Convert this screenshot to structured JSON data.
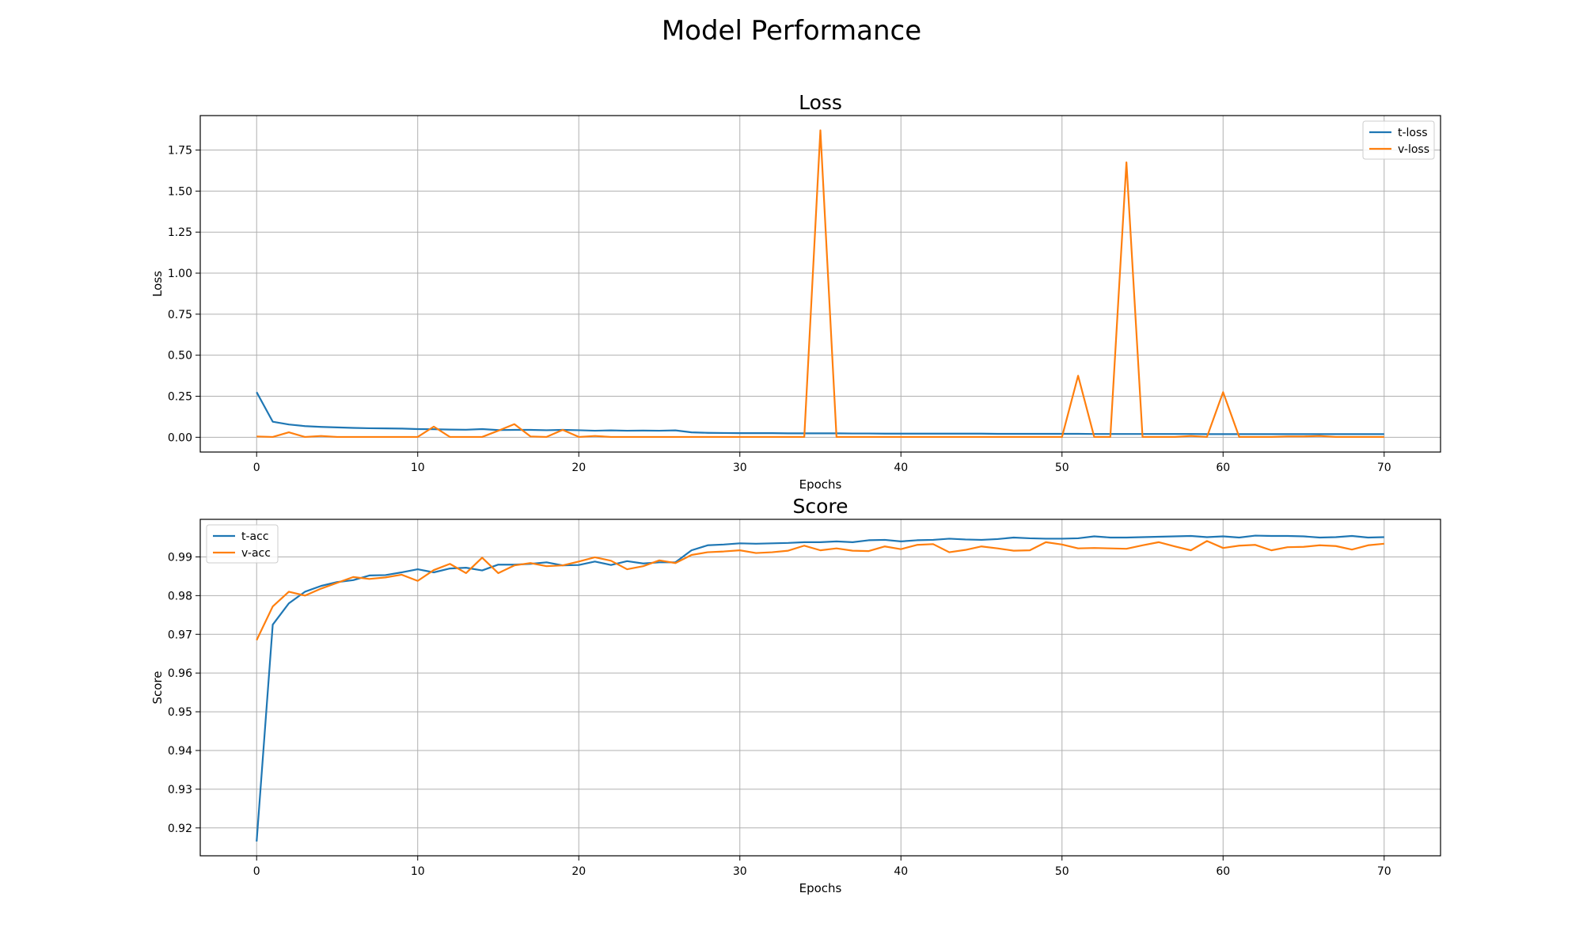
{
  "figure": {
    "title": "Model Performance"
  },
  "chart_data": [
    {
      "type": "line",
      "title": "Loss",
      "xlabel": "Epochs",
      "ylabel": "Loss",
      "xlim": [
        -3.5,
        73.5
      ],
      "ylim": [
        -0.09,
        1.96
      ],
      "xticks": [
        0,
        10,
        20,
        30,
        40,
        50,
        60,
        70
      ],
      "xtick_labels": [
        "0",
        "10",
        "20",
        "30",
        "40",
        "50",
        "60",
        "70"
      ],
      "yticks": [
        0.0,
        0.25,
        0.5,
        0.75,
        1.0,
        1.25,
        1.5,
        1.75
      ],
      "ytick_labels": [
        "0.00",
        "0.25",
        "0.50",
        "0.75",
        "1.00",
        "1.25",
        "1.50",
        "1.75"
      ],
      "grid": true,
      "legend_position": "top-right",
      "x": [
        0,
        1,
        2,
        3,
        4,
        5,
        6,
        7,
        8,
        9,
        10,
        11,
        12,
        13,
        14,
        15,
        16,
        17,
        18,
        19,
        20,
        21,
        22,
        23,
        24,
        25,
        26,
        27,
        28,
        29,
        30,
        31,
        32,
        33,
        34,
        35,
        36,
        37,
        38,
        39,
        40,
        41,
        42,
        43,
        44,
        45,
        46,
        47,
        48,
        49,
        50,
        51,
        52,
        53,
        54,
        55,
        56,
        57,
        58,
        59,
        60,
        61,
        62,
        63,
        64,
        65,
        66,
        67,
        68,
        69,
        70
      ],
      "series": [
        {
          "name": "t-loss",
          "color": "#1f77b4",
          "values": [
            0.275,
            0.095,
            0.078,
            0.068,
            0.063,
            0.06,
            0.057,
            0.055,
            0.054,
            0.053,
            0.05,
            0.049,
            0.047,
            0.046,
            0.05,
            0.044,
            0.045,
            0.045,
            0.043,
            0.045,
            0.043,
            0.04,
            0.042,
            0.04,
            0.041,
            0.04,
            0.042,
            0.03,
            0.027,
            0.026,
            0.025,
            0.025,
            0.025,
            0.024,
            0.024,
            0.024,
            0.024,
            0.023,
            0.023,
            0.022,
            0.022,
            0.022,
            0.022,
            0.022,
            0.022,
            0.022,
            0.021,
            0.021,
            0.021,
            0.021,
            0.021,
            0.021,
            0.02,
            0.02,
            0.02,
            0.02,
            0.02,
            0.02,
            0.02,
            0.019,
            0.019,
            0.019,
            0.019,
            0.019,
            0.019,
            0.019,
            0.019,
            0.019,
            0.019,
            0.019,
            0.019
          ]
        },
        {
          "name": "v-loss",
          "color": "#ff7f0e",
          "values": [
            0.005,
            0.002,
            0.03,
            0.002,
            0.008,
            0.002,
            0.002,
            0.002,
            0.002,
            0.002,
            0.002,
            0.065,
            0.002,
            0.002,
            0.002,
            0.04,
            0.08,
            0.005,
            0.002,
            0.045,
            0.002,
            0.008,
            0.002,
            0.002,
            0.002,
            0.002,
            0.002,
            0.002,
            0.002,
            0.002,
            0.002,
            0.002,
            0.002,
            0.002,
            0.002,
            1.87,
            0.002,
            0.002,
            0.002,
            0.002,
            0.002,
            0.002,
            0.002,
            0.002,
            0.002,
            0.002,
            0.002,
            0.002,
            0.002,
            0.002,
            0.002,
            0.375,
            0.002,
            0.002,
            1.675,
            0.002,
            0.002,
            0.002,
            0.008,
            0.002,
            0.275,
            0.002,
            0.002,
            0.002,
            0.005,
            0.005,
            0.008,
            0.002,
            0.002,
            0.002,
            0.002
          ]
        }
      ]
    },
    {
      "type": "line",
      "title": "Score",
      "xlabel": "Epochs",
      "ylabel": "Score",
      "xlim": [
        -3.5,
        73.5
      ],
      "ylim": [
        0.9128,
        0.9997
      ],
      "xticks": [
        0,
        10,
        20,
        30,
        40,
        50,
        60,
        70
      ],
      "xtick_labels": [
        "0",
        "10",
        "20",
        "30",
        "40",
        "50",
        "60",
        "70"
      ],
      "yticks": [
        0.92,
        0.93,
        0.94,
        0.95,
        0.96,
        0.97,
        0.98,
        0.99
      ],
      "ytick_labels": [
        "0.92",
        "0.93",
        "0.94",
        "0.95",
        "0.96",
        "0.97",
        "0.98",
        "0.99"
      ],
      "grid": true,
      "legend_position": "top-left",
      "x": [
        0,
        1,
        2,
        3,
        4,
        5,
        6,
        7,
        8,
        9,
        10,
        11,
        12,
        13,
        14,
        15,
        16,
        17,
        18,
        19,
        20,
        21,
        22,
        23,
        24,
        25,
        26,
        27,
        28,
        29,
        30,
        31,
        32,
        33,
        34,
        35,
        36,
        37,
        38,
        39,
        40,
        41,
        42,
        43,
        44,
        45,
        46,
        47,
        48,
        49,
        50,
        51,
        52,
        53,
        54,
        55,
        56,
        57,
        58,
        59,
        60,
        61,
        62,
        63,
        64,
        65,
        66,
        67,
        68,
        69,
        70
      ],
      "series": [
        {
          "name": "t-acc",
          "color": "#1f77b4",
          "values": [
            0.9165,
            0.9725,
            0.978,
            0.981,
            0.9825,
            0.9835,
            0.984,
            0.9852,
            0.9853,
            0.986,
            0.9868,
            0.986,
            0.987,
            0.9872,
            0.9865,
            0.988,
            0.988,
            0.9882,
            0.9886,
            0.9878,
            0.9879,
            0.9888,
            0.9879,
            0.9889,
            0.9883,
            0.9886,
            0.9886,
            0.9917,
            0.993,
            0.9932,
            0.9935,
            0.9934,
            0.9935,
            0.9936,
            0.9938,
            0.9938,
            0.994,
            0.9938,
            0.9943,
            0.9944,
            0.994,
            0.9943,
            0.9944,
            0.9947,
            0.9945,
            0.9944,
            0.9946,
            0.995,
            0.9948,
            0.9947,
            0.9947,
            0.9948,
            0.9953,
            0.995,
            0.995,
            0.9951,
            0.9952,
            0.9953,
            0.9954,
            0.9951,
            0.9953,
            0.995,
            0.9955,
            0.9954,
            0.9954,
            0.9953,
            0.995,
            0.9951,
            0.9954,
            0.995,
            0.9951
          ]
        },
        {
          "name": "v-acc",
          "color": "#ff7f0e",
          "values": [
            0.9685,
            0.9772,
            0.981,
            0.98,
            0.9818,
            0.9833,
            0.9848,
            0.9843,
            0.9847,
            0.9854,
            0.9838,
            0.9866,
            0.9882,
            0.9858,
            0.9898,
            0.9858,
            0.9878,
            0.9884,
            0.9876,
            0.9878,
            0.9888,
            0.9899,
            0.989,
            0.9868,
            0.9876,
            0.9891,
            0.9884,
            0.9905,
            0.9912,
            0.9914,
            0.9917,
            0.991,
            0.9912,
            0.9916,
            0.9929,
            0.9917,
            0.9922,
            0.9916,
            0.9915,
            0.9927,
            0.992,
            0.9931,
            0.9933,
            0.9912,
            0.9918,
            0.9927,
            0.9922,
            0.9916,
            0.9917,
            0.9938,
            0.9932,
            0.9922,
            0.9923,
            0.9922,
            0.9921,
            0.993,
            0.9938,
            0.9927,
            0.9917,
            0.9941,
            0.9923,
            0.9929,
            0.9931,
            0.9917,
            0.9925,
            0.9926,
            0.993,
            0.9928,
            0.9919,
            0.993,
            0.9934
          ]
        }
      ]
    }
  ]
}
